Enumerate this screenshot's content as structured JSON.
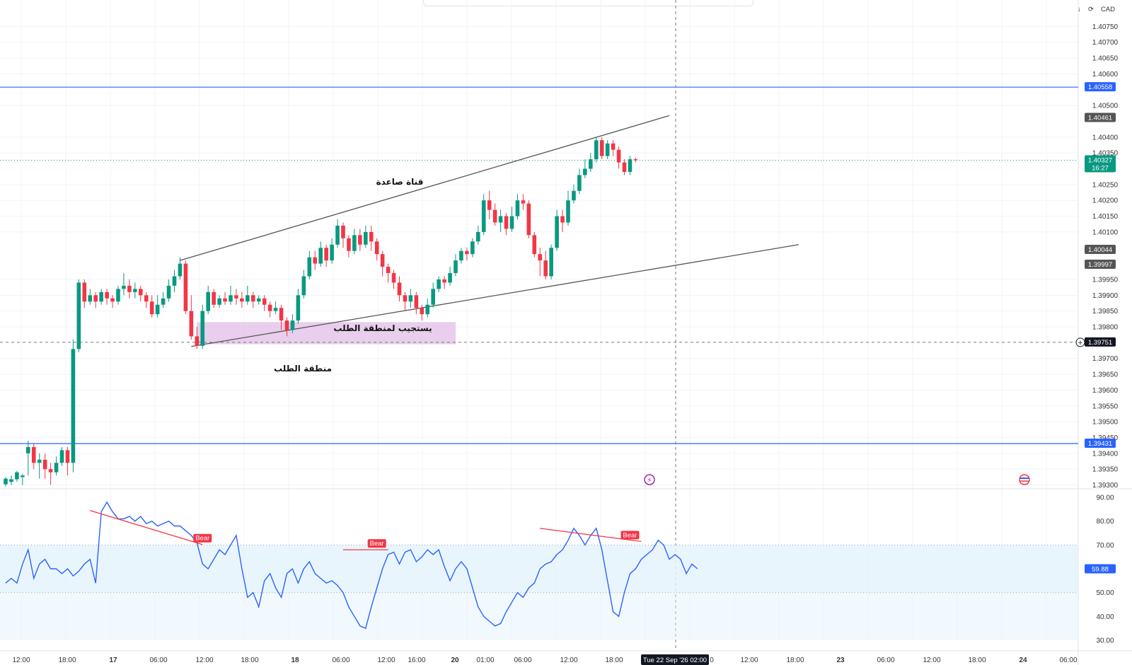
{
  "toolbar": {
    "currency": "CAD",
    "down_icon": "arrow-down-icon",
    "refresh_icon": "refresh-icon"
  },
  "colors": {
    "up": "#089981",
    "down": "#f23645",
    "level": "#2962ff",
    "rsi": "#2962ff",
    "divergence": "#f23645",
    "zone": "#e1bee7",
    "channel": "#555555"
  },
  "annotations": {
    "channel_label": "قناة صاعدة",
    "zone_response_label": "يستجيب لمنطقة الطلب",
    "zone_label": "منطقة الطلب"
  },
  "time_badge": "Tue 22 Sep '26   02:00",
  "chart_data": [
    {
      "type": "candlestick",
      "title": "",
      "ylim": [
        1.3929,
        1.408
      ],
      "price_ticks": [
        "1.40750",
        "1.40700",
        "1.40650",
        "1.40600",
        "1.40500",
        "1.40400",
        "1.40350",
        "1.40250",
        "1.40200",
        "1.40150",
        "1.40100",
        "1.39950",
        "1.39900",
        "1.39850",
        "1.39800",
        "1.39700",
        "1.39650",
        "1.39600",
        "1.39550",
        "1.39500",
        "1.39450",
        "1.39400",
        "1.39350",
        "1.39300"
      ],
      "price_badges": [
        {
          "label": "1.40558",
          "value": 1.40558,
          "color": "#2962ff"
        },
        {
          "label": "1.40461",
          "value": 1.40461,
          "color": "#555555"
        },
        {
          "label": "1.40327",
          "sub": "16:27",
          "value": 1.40327,
          "color": "#089981"
        },
        {
          "label": "1.40044",
          "value": 1.40044,
          "color": "#555555"
        },
        {
          "label": "1.39997",
          "value": 1.39997,
          "color": "#555555"
        },
        {
          "label": "1.39751",
          "value": 1.39751,
          "color": "#131722"
        },
        {
          "label": "1.39431",
          "value": 1.39431,
          "color": "#2962ff"
        }
      ],
      "horizontal_levels": [
        1.40558,
        1.39431
      ],
      "current_price": 1.40327,
      "crosshair_price": 1.39751,
      "demand_zone": {
        "from": 1.39745,
        "to": 1.39815,
        "start_bar": 34,
        "end_bar": 80
      },
      "channel": {
        "upper": [
          {
            "bar": 31,
            "price": 1.4001
          },
          {
            "bar": 118,
            "price": 1.40468
          }
        ],
        "lower": [
          {
            "bar": 33,
            "price": 1.39738
          },
          {
            "bar": 141,
            "price": 1.4006
          }
        ]
      },
      "candles": [
        [
          1.39302,
          1.3932,
          1.39295,
          1.39325
        ],
        [
          1.3931,
          1.39318,
          1.393,
          1.3933
        ],
        [
          1.39318,
          1.3934,
          1.3931,
          1.39345
        ],
        [
          1.39325,
          1.3933,
          1.393,
          1.39335
        ],
        [
          1.394,
          1.3942,
          1.3933,
          1.3944
        ],
        [
          1.3942,
          1.3937,
          1.3935,
          1.3943
        ],
        [
          1.3937,
          1.3938,
          1.3932,
          1.394
        ],
        [
          1.3938,
          1.3935,
          1.3932,
          1.394
        ],
        [
          1.3935,
          1.3934,
          1.393,
          1.3937
        ],
        [
          1.3934,
          1.3937,
          1.3933,
          1.3939
        ],
        [
          1.3937,
          1.3941,
          1.3936,
          1.3942
        ],
        [
          1.3941,
          1.3937,
          1.3933,
          1.3942
        ],
        [
          1.3937,
          1.3973,
          1.3934,
          1.3976
        ],
        [
          1.3973,
          1.3994,
          1.3972,
          1.3995
        ],
        [
          1.3994,
          1.3988,
          1.3986,
          1.3995
        ],
        [
          1.3988,
          1.399,
          1.3987,
          1.3992
        ],
        [
          1.399,
          1.3988,
          1.3986,
          1.3991
        ],
        [
          1.3988,
          1.3991,
          1.3987,
          1.3992
        ],
        [
          1.3991,
          1.3989,
          1.3987,
          1.3992
        ],
        [
          1.3989,
          1.3988,
          1.3986,
          1.399
        ],
        [
          1.3988,
          1.3992,
          1.3987,
          1.3993
        ],
        [
          1.3992,
          1.3993,
          1.399,
          1.3997
        ],
        [
          1.3993,
          1.3991,
          1.3989,
          1.3995
        ],
        [
          1.3991,
          1.3992,
          1.3989,
          1.3994
        ],
        [
          1.3992,
          1.399,
          1.3988,
          1.3993
        ],
        [
          1.399,
          1.3988,
          1.3986,
          1.3991
        ],
        [
          1.3988,
          1.3984,
          1.3983,
          1.399
        ],
        [
          1.3984,
          1.3987,
          1.3983,
          1.399
        ],
        [
          1.3987,
          1.3989,
          1.3986,
          1.3991
        ],
        [
          1.3989,
          1.3993,
          1.3988,
          1.3995
        ],
        [
          1.3993,
          1.3996,
          1.3991,
          1.3998
        ],
        [
          1.3996,
          1.4,
          1.3995,
          1.4002
        ],
        [
          1.4,
          1.3985,
          1.3984,
          1.4001
        ],
        [
          1.3985,
          1.3977,
          1.3976,
          1.399
        ],
        [
          1.3977,
          1.3974,
          1.3973,
          1.398
        ],
        [
          1.3974,
          1.3985,
          1.3973,
          1.3987
        ],
        [
          1.3985,
          1.3991,
          1.3984,
          1.3993
        ],
        [
          1.3991,
          1.3987,
          1.3986,
          1.3992
        ],
        [
          1.3987,
          1.3989,
          1.3986,
          1.399
        ],
        [
          1.3989,
          1.3988,
          1.3987,
          1.3991
        ],
        [
          1.3988,
          1.399,
          1.3987,
          1.3993
        ],
        [
          1.399,
          1.3989,
          1.3987,
          1.3992
        ],
        [
          1.3989,
          1.3988,
          1.3986,
          1.3991
        ],
        [
          1.3988,
          1.399,
          1.3987,
          1.3993
        ],
        [
          1.399,
          1.3988,
          1.3986,
          1.3991
        ],
        [
          1.3988,
          1.3989,
          1.3987,
          1.399
        ],
        [
          1.3989,
          1.3987,
          1.3985,
          1.399
        ],
        [
          1.3987,
          1.3985,
          1.3983,
          1.3988
        ],
        [
          1.3985,
          1.3986,
          1.3984,
          1.3988
        ],
        [
          1.3986,
          1.3982,
          1.3979,
          1.3987
        ],
        [
          1.3982,
          1.3979,
          1.3977,
          1.3983
        ],
        [
          1.3979,
          1.3982,
          1.3978,
          1.3984
        ],
        [
          1.3982,
          1.399,
          1.3981,
          1.3992
        ],
        [
          1.399,
          1.3996,
          1.3989,
          1.3998
        ],
        [
          1.3996,
          1.4002,
          1.3995,
          1.4004
        ],
        [
          1.4002,
          1.4,
          1.3998,
          1.4004
        ],
        [
          1.4,
          1.4005,
          1.3999,
          1.4007
        ],
        [
          1.4005,
          1.4001,
          1.3999,
          1.4006
        ],
        [
          1.4001,
          1.4006,
          1.4,
          1.4008
        ],
        [
          1.4006,
          1.4012,
          1.4005,
          1.4014
        ],
        [
          1.4012,
          1.4008,
          1.4005,
          1.4013
        ],
        [
          1.4008,
          1.4004,
          1.4002,
          1.4009
        ],
        [
          1.4004,
          1.4009,
          1.4003,
          1.4011
        ],
        [
          1.4009,
          1.4006,
          1.4004,
          1.4011
        ],
        [
          1.4006,
          1.401,
          1.4005,
          1.4012
        ],
        [
          1.401,
          1.4007,
          1.4004,
          1.4012
        ],
        [
          1.4007,
          1.4003,
          1.4001,
          1.4008
        ],
        [
          1.4003,
          1.3999,
          1.3996,
          1.4004
        ],
        [
          1.3999,
          1.3997,
          1.3994,
          1.4
        ],
        [
          1.3997,
          1.3994,
          1.3992,
          1.3998
        ],
        [
          1.3994,
          1.399,
          1.3988,
          1.3996
        ],
        [
          1.399,
          1.3988,
          1.3985,
          1.3991
        ],
        [
          1.3988,
          1.399,
          1.3986,
          1.3992
        ],
        [
          1.399,
          1.3986,
          1.3984,
          1.3991
        ],
        [
          1.3986,
          1.3984,
          1.3982,
          1.3987
        ],
        [
          1.3984,
          1.3987,
          1.3983,
          1.3989
        ],
        [
          1.3987,
          1.3992,
          1.3986,
          1.3994
        ],
        [
          1.3992,
          1.3995,
          1.3991,
          1.3996
        ],
        [
          1.3995,
          1.3994,
          1.3992,
          1.3996
        ],
        [
          1.3994,
          1.3997,
          1.3993,
          1.3999
        ],
        [
          1.3997,
          1.4001,
          1.3996,
          1.4003
        ],
        [
          1.4001,
          1.4004,
          1.4,
          1.4005
        ],
        [
          1.4004,
          1.4003,
          1.4001,
          1.4005
        ],
        [
          1.4003,
          1.4007,
          1.4002,
          1.4008
        ],
        [
          1.4007,
          1.401,
          1.4006,
          1.4012
        ],
        [
          1.401,
          1.402,
          1.4009,
          1.4022
        ],
        [
          1.402,
          1.4017,
          1.4014,
          1.4023
        ],
        [
          1.4017,
          1.4013,
          1.4012,
          1.4019
        ],
        [
          1.4013,
          1.4015,
          1.401,
          1.4017
        ],
        [
          1.4015,
          1.4011,
          1.4009,
          1.4016
        ],
        [
          1.4011,
          1.4015,
          1.401,
          1.4018
        ],
        [
          1.4015,
          1.402,
          1.4014,
          1.4022
        ],
        [
          1.402,
          1.4019,
          1.4017,
          1.4022
        ],
        [
          1.4019,
          1.4009,
          1.4008,
          1.402
        ],
        [
          1.4009,
          1.4003,
          1.4002,
          1.401
        ],
        [
          1.4003,
          1.4001,
          1.3996,
          1.4005
        ],
        [
          1.4001,
          1.3996,
          1.3995,
          1.4004
        ],
        [
          1.3996,
          1.4005,
          1.3995,
          1.4006
        ],
        [
          1.4005,
          1.4015,
          1.4004,
          1.4017
        ],
        [
          1.4015,
          1.4013,
          1.401,
          1.4017
        ],
        [
          1.4013,
          1.402,
          1.4012,
          1.4023
        ],
        [
          1.402,
          1.4023,
          1.4019,
          1.4025
        ],
        [
          1.4023,
          1.4028,
          1.4022,
          1.403
        ],
        [
          1.4028,
          1.403,
          1.4027,
          1.4033
        ],
        [
          1.403,
          1.4033,
          1.4029,
          1.4035
        ],
        [
          1.4033,
          1.4039,
          1.4032,
          1.404
        ],
        [
          1.4039,
          1.4034,
          1.4033,
          1.404
        ],
        [
          1.4034,
          1.4038,
          1.4033,
          1.4039
        ],
        [
          1.4038,
          1.4036,
          1.4034,
          1.4039
        ],
        [
          1.4036,
          1.4032,
          1.403,
          1.4037
        ],
        [
          1.4032,
          1.4029,
          1.4028,
          1.4033
        ],
        [
          1.4029,
          1.4033,
          1.4028,
          1.4034
        ],
        [
          1.4033,
          1.40327,
          1.4032,
          1.40335
        ]
      ],
      "candle_times_start_bar": 0
    },
    {
      "type": "line",
      "title": "",
      "ylim": [
        30,
        93
      ],
      "rsi_ticks": [
        "90.00",
        "80.00",
        "70.00",
        "60.00",
        "50.00",
        "40.00",
        "30.00"
      ],
      "band": [
        50,
        70
      ],
      "current_label": "59.88",
      "current_value": 59.88,
      "values": [
        54,
        56,
        54,
        62,
        68,
        56,
        62,
        64,
        60,
        60,
        58,
        60,
        57,
        59,
        62,
        64,
        54,
        84,
        88,
        84,
        81,
        81,
        82,
        80,
        82,
        79,
        80,
        78,
        79,
        80,
        78,
        78,
        76,
        74,
        71,
        62,
        60,
        64,
        68,
        66,
        70,
        74,
        60,
        48,
        50,
        44,
        55,
        58,
        52,
        48,
        58,
        60,
        54,
        60,
        63,
        58,
        56,
        54,
        55,
        53,
        50,
        44,
        40,
        36,
        35,
        44,
        52,
        60,
        66,
        67,
        62,
        67,
        68,
        63,
        65,
        68,
        66,
        68,
        61,
        55,
        60,
        63,
        60,
        52,
        44,
        40,
        38,
        36,
        37,
        42,
        46,
        50,
        48,
        52,
        54,
        60,
        62,
        63,
        66,
        68,
        72,
        77,
        74,
        70,
        74,
        77,
        68,
        55,
        42,
        40,
        50,
        58,
        60,
        64,
        66,
        68,
        72,
        70,
        64,
        66,
        64,
        58,
        62,
        60
      ],
      "divergences": [
        {
          "label": "Bear",
          "from": {
            "bar": 15,
            "value": 84.5
          },
          "to": {
            "bar": 35,
            "value": 70.2
          },
          "badge_bar": 35
        },
        {
          "label": "Bear",
          "from": {
            "bar": 60,
            "value": 68.0
          },
          "to": {
            "bar": 68,
            "value": 68.0
          },
          "badge_bar": 66
        },
        {
          "label": "Bear",
          "from": {
            "bar": 95,
            "value": 77.0
          },
          "to": {
            "bar": 113,
            "value": 71.5
          },
          "badge_bar": 111
        }
      ]
    }
  ],
  "time_axis": {
    "labels": [
      "12:00",
      "18:00",
      "17",
      "06:00",
      "12:00",
      "18:00",
      "18",
      "06:00",
      "12:00",
      "16:00",
      "20",
      "01:00",
      "06:00",
      "12:00",
      "18:00",
      "0",
      "12:00",
      "18:00",
      "23",
      "06:00",
      "12:00",
      "18:00",
      "24",
      "06:00"
    ],
    "bold": [
      "17",
      "18",
      "20",
      "23",
      "24"
    ]
  }
}
